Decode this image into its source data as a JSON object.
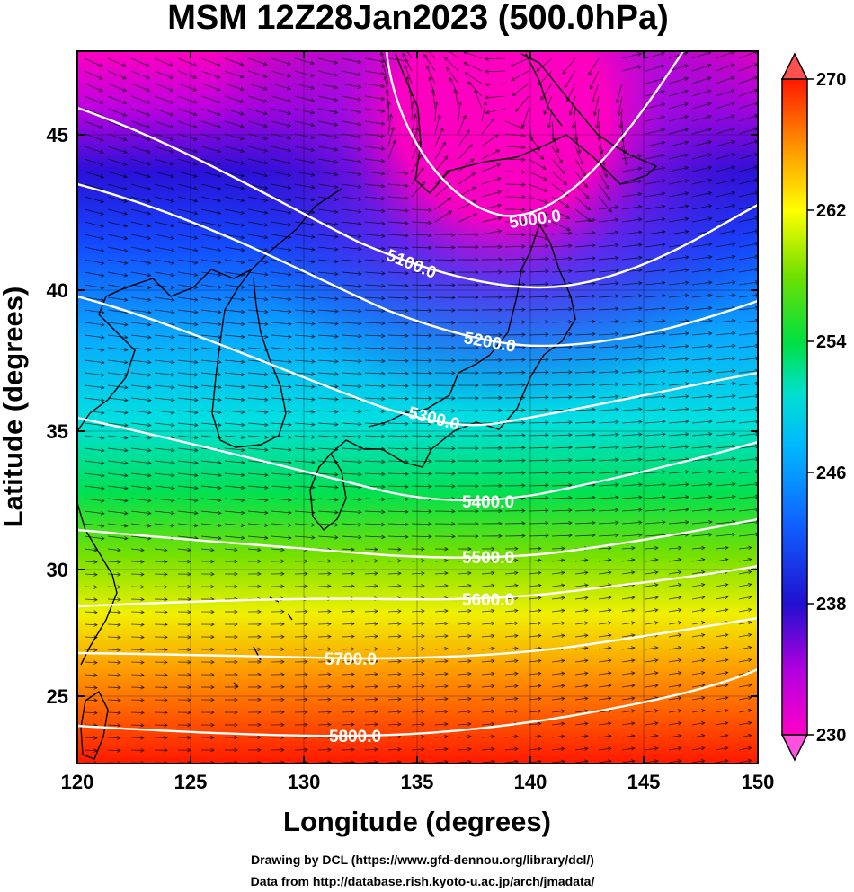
{
  "title": "MSM 12Z28Jan2023 (500.0hPa)",
  "x_axis": {
    "label": "Longitude (degrees)",
    "range": [
      120,
      150
    ],
    "ticks": [
      "120",
      "125",
      "130",
      "135",
      "140",
      "145",
      "150"
    ]
  },
  "y_axis": {
    "label": "Latitude  (degrees)",
    "range": [
      22.4,
      47.6
    ],
    "ticks": [
      "25",
      "30",
      "35",
      "40",
      "45"
    ]
  },
  "colorbar": {
    "range": [
      230,
      270
    ],
    "ticks": [
      "230",
      "238",
      "246",
      "254",
      "262",
      "270"
    ],
    "colors": [
      "#ff00c8",
      "#a000e0",
      "#2010d0",
      "#1060ff",
      "#00d0ff",
      "#00e060",
      "#70e000",
      "#ffff00",
      "#ff9000",
      "#ff1800"
    ]
  },
  "contours": [
    {
      "label": "5000.0"
    },
    {
      "label": "5100.0"
    },
    {
      "label": "5200.0"
    },
    {
      "label": "5300.0"
    },
    {
      "label": "5400.0"
    },
    {
      "label": "5500.0"
    },
    {
      "label": "5600.0"
    },
    {
      "label": "5700.0"
    },
    {
      "label": "5800.0"
    }
  ],
  "credits": [
    "Drawing by DCL (https://www.gfd-dennou.org/library/dcl/)",
    "Data from http://database.rish.kyoto-u.ac.jp/arch/jmadata/"
  ]
}
